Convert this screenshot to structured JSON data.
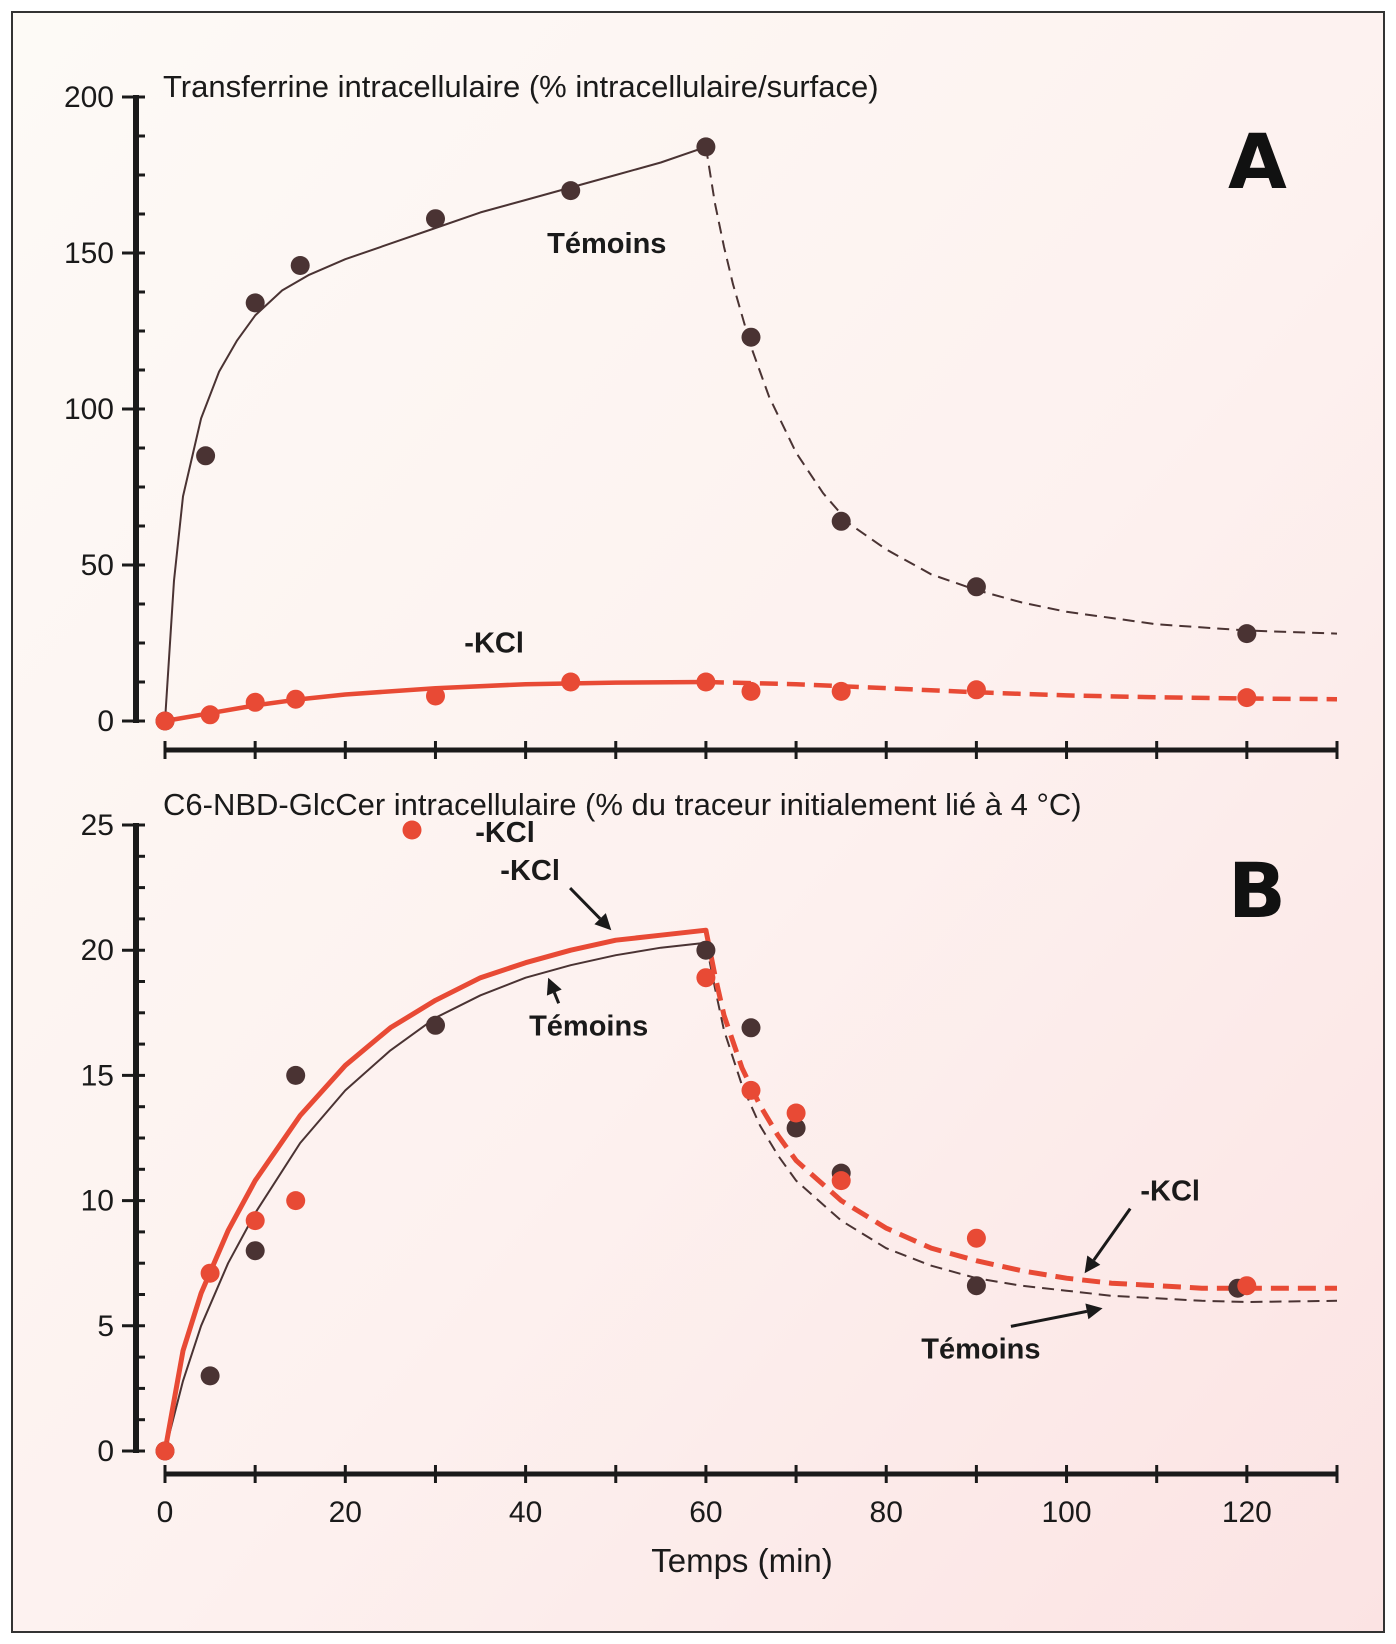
{
  "colors": {
    "temoins": "#4a3333",
    "kcl": "#e84a35",
    "axis": "#1a1a1a",
    "background_gradient_end": "#fbe1e1"
  },
  "chart_data": [
    {
      "type": "scatter",
      "panel_label": "A",
      "title": "Transferrine intracellulaire (% intracellulaire/surface)",
      "xlabel": "",
      "ylabel": "",
      "xlim": [
        0,
        130
      ],
      "ylim": [
        0,
        200
      ],
      "x_ticks": [
        0,
        20,
        40,
        60,
        80,
        100,
        120
      ],
      "y_ticks": [
        0,
        50,
        100,
        150,
        200
      ],
      "y_tick_labels": [
        "0",
        "50",
        "100",
        "150",
        "200"
      ],
      "grid": false,
      "series": [
        {
          "name": "Témoins",
          "color_key": "temoins",
          "points": [
            [
              0,
              0
            ],
            [
              4.5,
              85
            ],
            [
              10,
              134
            ],
            [
              15,
              146
            ],
            [
              30,
              161
            ],
            [
              45,
              170
            ],
            [
              60,
              184
            ],
            [
              65,
              123
            ],
            [
              75,
              64
            ],
            [
              90,
              43
            ],
            [
              120,
              28
            ]
          ],
          "curve_rise": [
            [
              0,
              0
            ],
            [
              1,
              45
            ],
            [
              2,
              72
            ],
            [
              4,
              97
            ],
            [
              6,
              112
            ],
            [
              8,
              122
            ],
            [
              10,
              130
            ],
            [
              13,
              138
            ],
            [
              16,
              143
            ],
            [
              20,
              148
            ],
            [
              25,
              153
            ],
            [
              30,
              158
            ],
            [
              35,
              163
            ],
            [
              40,
              167
            ],
            [
              45,
              171
            ],
            [
              50,
              175
            ],
            [
              55,
              179
            ],
            [
              60,
              184
            ]
          ],
          "curve_decay": [
            [
              60,
              184
            ],
            [
              61,
              166
            ],
            [
              62,
              152
            ],
            [
              63,
              140
            ],
            [
              65,
              120
            ],
            [
              67,
              104
            ],
            [
              70,
              86
            ],
            [
              73,
              73
            ],
            [
              76,
              63
            ],
            [
              80,
              55
            ],
            [
              85,
              47
            ],
            [
              90,
              42
            ],
            [
              95,
              38
            ],
            [
              100,
              35
            ],
            [
              105,
              33
            ],
            [
              110,
              31
            ],
            [
              115,
              30
            ],
            [
              120,
              29
            ],
            [
              125,
              28.5
            ],
            [
              130,
              28
            ]
          ]
        },
        {
          "name": "-KCl",
          "color_key": "kcl",
          "points": [
            [
              0,
              0
            ],
            [
              5,
              2
            ],
            [
              10,
              6
            ],
            [
              14.5,
              7
            ],
            [
              30,
              8
            ],
            [
              45,
              12.5
            ],
            [
              60,
              12.5
            ],
            [
              65,
              9.5
            ],
            [
              75,
              9.5
            ],
            [
              90,
              10
            ],
            [
              120,
              7.5
            ]
          ],
          "curve_rise": [
            [
              0,
              0
            ],
            [
              5,
              2.5
            ],
            [
              10,
              5
            ],
            [
              15,
              7
            ],
            [
              20,
              8.5
            ],
            [
              30,
              10.5
            ],
            [
              40,
              11.8
            ],
            [
              50,
              12.3
            ],
            [
              60,
              12.5
            ]
          ],
          "curve_decay": [
            [
              60,
              12.5
            ],
            [
              70,
              11.8
            ],
            [
              80,
              10.5
            ],
            [
              90,
              9.2
            ],
            [
              100,
              8.2
            ],
            [
              110,
              7.6
            ],
            [
              120,
              7.2
            ],
            [
              130,
              7
            ]
          ]
        }
      ],
      "annotations": [
        {
          "text": "Témoins",
          "x": 49,
          "y": 150
        },
        {
          "text": "-KCl",
          "x": 36.5,
          "y": 22
        }
      ]
    },
    {
      "type": "scatter",
      "panel_label": "B",
      "title": "C6-NBD-GlcCer intracellulaire (% du traceur initialement lié à 4 °C)",
      "xlabel": "Temps (min)",
      "ylabel": "",
      "xlim": [
        0,
        130
      ],
      "ylim": [
        0,
        25
      ],
      "x_ticks": [
        0,
        20,
        40,
        60,
        80,
        100,
        120
      ],
      "x_tick_labels": [
        "0",
        "20",
        "40",
        "60",
        "80",
        "100",
        "120"
      ],
      "y_ticks": [
        0,
        5,
        10,
        15,
        20,
        25
      ],
      "y_tick_labels": [
        "0",
        "5",
        "10",
        "15",
        "20",
        "25"
      ],
      "grid": false,
      "legend": {
        "marker": "dot",
        "label": "-KCl",
        "position": "top-left"
      },
      "series": [
        {
          "name": "Témoins",
          "color_key": "temoins",
          "points": [
            [
              0,
              0
            ],
            [
              5,
              3
            ],
            [
              10,
              8
            ],
            [
              14.5,
              15
            ],
            [
              30,
              17
            ],
            [
              60,
              20
            ],
            [
              65,
              16.9
            ],
            [
              70,
              12.9
            ],
            [
              75,
              11.1
            ],
            [
              90,
              6.6
            ],
            [
              119,
              6.5
            ]
          ],
          "curve_rise": [
            [
              0,
              0
            ],
            [
              2,
              2.8
            ],
            [
              4,
              5
            ],
            [
              7,
              7.5
            ],
            [
              10,
              9.5
            ],
            [
              15,
              12.3
            ],
            [
              20,
              14.4
            ],
            [
              25,
              16
            ],
            [
              30,
              17.3
            ],
            [
              35,
              18.2
            ],
            [
              40,
              18.9
            ],
            [
              45,
              19.4
            ],
            [
              50,
              19.8
            ],
            [
              55,
              20.1
            ],
            [
              60,
              20.3
            ]
          ],
          "curve_decay": [
            [
              60,
              20.3
            ],
            [
              61,
              18.5
            ],
            [
              62,
              16.8
            ],
            [
              64,
              14.6
            ],
            [
              66,
              13
            ],
            [
              68,
              11.8
            ],
            [
              70,
              10.8
            ],
            [
              75,
              9.2
            ],
            [
              80,
              8.1
            ],
            [
              85,
              7.4
            ],
            [
              90,
              6.9
            ],
            [
              95,
              6.6
            ],
            [
              100,
              6.4
            ],
            [
              105,
              6.2
            ],
            [
              110,
              6.1
            ],
            [
              115,
              6
            ],
            [
              120,
              5.95
            ],
            [
              130,
              6
            ]
          ]
        },
        {
          "name": "-KCl",
          "color_key": "kcl",
          "points": [
            [
              0,
              0
            ],
            [
              5,
              7.1
            ],
            [
              10,
              9.2
            ],
            [
              14.5,
              10
            ],
            [
              60,
              18.9
            ],
            [
              65,
              14.4
            ],
            [
              70,
              13.5
            ],
            [
              75,
              10.8
            ],
            [
              90,
              8.5
            ],
            [
              120,
              6.6
            ]
          ],
          "curve_rise": [
            [
              0,
              0
            ],
            [
              2,
              4
            ],
            [
              4,
              6.3
            ],
            [
              7,
              8.8
            ],
            [
              10,
              10.8
            ],
            [
              15,
              13.4
            ],
            [
              20,
              15.4
            ],
            [
              25,
              16.9
            ],
            [
              30,
              18
            ],
            [
              35,
              18.9
            ],
            [
              40,
              19.5
            ],
            [
              45,
              20
            ],
            [
              50,
              20.4
            ],
            [
              55,
              20.6
            ],
            [
              60,
              20.8
            ]
          ],
          "curve_decay": [
            [
              60,
              20.8
            ],
            [
              61,
              19
            ],
            [
              62,
              17.4
            ],
            [
              64,
              15.3
            ],
            [
              66,
              13.8
            ],
            [
              68,
              12.6
            ],
            [
              70,
              11.6
            ],
            [
              75,
              10
            ],
            [
              80,
              8.9
            ],
            [
              85,
              8.1
            ],
            [
              90,
              7.6
            ],
            [
              95,
              7.2
            ],
            [
              100,
              6.9
            ],
            [
              105,
              6.7
            ],
            [
              110,
              6.6
            ],
            [
              115,
              6.5
            ],
            [
              120,
              6.5
            ],
            [
              130,
              6.5
            ]
          ]
        }
      ],
      "annotations": [
        {
          "text": "-KCl",
          "x": 40.5,
          "y": 22.8,
          "arrow_to": [
            49.5,
            20.8
          ]
        },
        {
          "text": "Témoins",
          "x": 47,
          "y": 16.6,
          "arrow_to": [
            42.5,
            18.9
          ]
        },
        {
          "text": "-KCl",
          "x": 111.5,
          "y": 10,
          "arrow_to": [
            102,
            7.1
          ]
        },
        {
          "text": "Témoins",
          "x": 90.5,
          "y": 3.7,
          "arrow_to": [
            104,
            5.7
          ]
        }
      ]
    }
  ]
}
